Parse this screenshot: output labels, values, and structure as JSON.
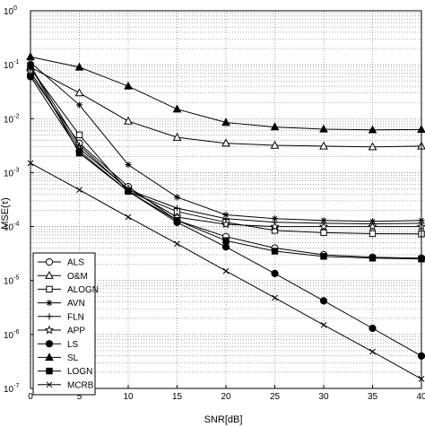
{
  "chart_data": {
    "type": "line",
    "title": "",
    "xlabel": "SNR[dB]",
    "ylabel": "MSE(τ)",
    "x_scale": "linear",
    "y_scale": "log",
    "xlim": [
      0,
      40
    ],
    "ylim": [
      1e-07,
      1
    ],
    "x_ticks": [
      "0",
      "5",
      "10",
      "15",
      "20",
      "25",
      "30",
      "35",
      "40"
    ],
    "y_ticks": [
      {
        "base": "10",
        "exp": "0",
        "value": 1
      },
      {
        "base": "10",
        "exp": "-1",
        "value": 0.1
      },
      {
        "base": "10",
        "exp": "-2",
        "value": 0.01
      },
      {
        "base": "10",
        "exp": "-3",
        "value": 0.001
      },
      {
        "base": "10",
        "exp": "-4",
        "value": 0.0001
      },
      {
        "base": "10",
        "exp": "-5",
        "value": 1e-05
      },
      {
        "base": "10",
        "exp": "-6",
        "value": 1e-06
      },
      {
        "base": "10",
        "exp": "-7",
        "value": 1e-07
      }
    ],
    "grid": true,
    "legend_position": "bottom-left",
    "x": [
      0,
      5,
      10,
      15,
      20,
      25,
      30,
      35,
      40
    ],
    "series": [
      {
        "name": "ALS",
        "marker": "circle-open",
        "values": [
          0.065,
          0.0035,
          0.00055,
          0.00013,
          6.5e-05,
          4e-05,
          3e-05,
          2.7e-05,
          2.6e-05
        ]
      },
      {
        "name": "O&M",
        "marker": "triangle-open",
        "values": [
          0.09,
          0.03,
          0.009,
          0.0045,
          0.0035,
          0.0032,
          0.0031,
          0.003,
          0.0031
        ]
      },
      {
        "name": "ALOGN",
        "marker": "square-open",
        "values": [
          0.085,
          0.005,
          0.00045,
          0.00019,
          0.00012,
          8.5e-05,
          7.7e-05,
          7.4e-05,
          7.3e-05
        ]
      },
      {
        "name": "AVN",
        "marker": "asterisk",
        "values": [
          0.11,
          0.018,
          0.0014,
          0.00035,
          0.000165,
          0.00014,
          0.00013,
          0.000125,
          0.00013
        ]
      },
      {
        "name": "FLN",
        "marker": "plus",
        "values": [
          0.095,
          0.0032,
          0.00048,
          0.00022,
          0.00014,
          0.00012,
          0.000115,
          0.000112,
          0.000115
        ]
      },
      {
        "name": "APP",
        "marker": "star",
        "values": [
          0.075,
          0.0028,
          0.0005,
          0.00015,
          0.00011,
          0.0001,
          0.0001,
          0.0001,
          0.0001
        ]
      },
      {
        "name": "LS",
        "marker": "circle-filled",
        "values": [
          0.06,
          0.0025,
          0.00045,
          0.00012,
          4.2e-05,
          1.35e-05,
          4.2e-06,
          1.3e-06,
          4e-07
        ]
      },
      {
        "name": "SL",
        "marker": "triangle-filled",
        "values": [
          0.14,
          0.09,
          0.04,
          0.015,
          0.0085,
          0.007,
          0.0064,
          0.0062,
          0.0063
        ]
      },
      {
        "name": "LOGN",
        "marker": "square-filled",
        "values": [
          0.095,
          0.0023,
          0.00045,
          0.00013,
          5.5e-05,
          3.5e-05,
          2.8e-05,
          2.6e-05,
          2.5e-05
        ]
      },
      {
        "name": "MCRB",
        "marker": "x",
        "values": [
          0.0015,
          0.00048,
          0.00015,
          4.8e-05,
          1.5e-05,
          4.8e-06,
          1.5e-06,
          4.8e-07,
          1.5e-07
        ]
      }
    ]
  }
}
